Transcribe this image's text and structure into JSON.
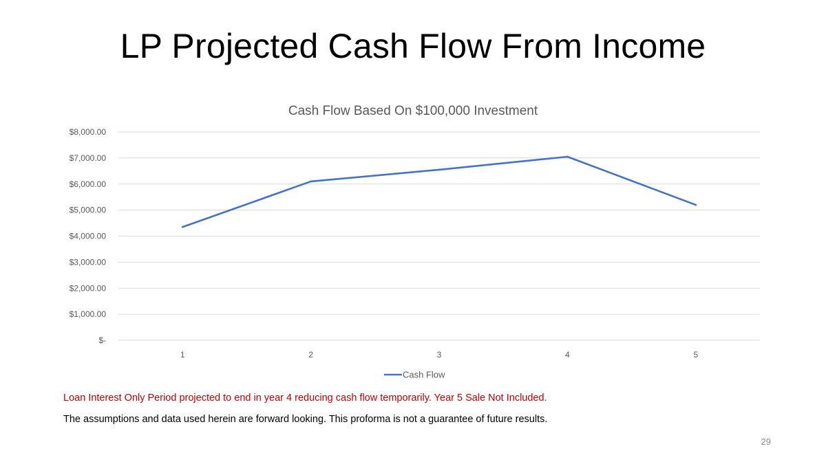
{
  "slide": {
    "title": "LP Projected Cash Flow From Income",
    "note_red": "Loan Interest Only Period projected to end in year 4 reducing cash flow temporarily. Year 5 Sale Not Included.",
    "note_black": "The assumptions and data used herein are forward looking. This proforma is not a guarantee of future results.",
    "page_number": "29"
  },
  "colors": {
    "series_line": "#4472c4",
    "grid": "#d9d9d9",
    "axis_text": "#595959",
    "note_red": "#c00000"
  },
  "chart_data": {
    "type": "line",
    "title": "Cash Flow Based On $100,000 Investment",
    "xlabel": "",
    "ylabel": "",
    "categories": [
      "1",
      "2",
      "3",
      "4",
      "5"
    ],
    "series": [
      {
        "name": "Cash Flow",
        "values": [
          4350,
          6100,
          6550,
          7050,
          5200
        ]
      }
    ],
    "ylim": [
      0,
      8000
    ],
    "ytick_labels": [
      "$-",
      "$1,000.00",
      "$2,000.00",
      "$3,000.00",
      "$4,000.00",
      "$5,000.00",
      "$6,000.00",
      "$7,000.00",
      "$8,000.00"
    ],
    "grid": true,
    "legend_position": "bottom"
  }
}
